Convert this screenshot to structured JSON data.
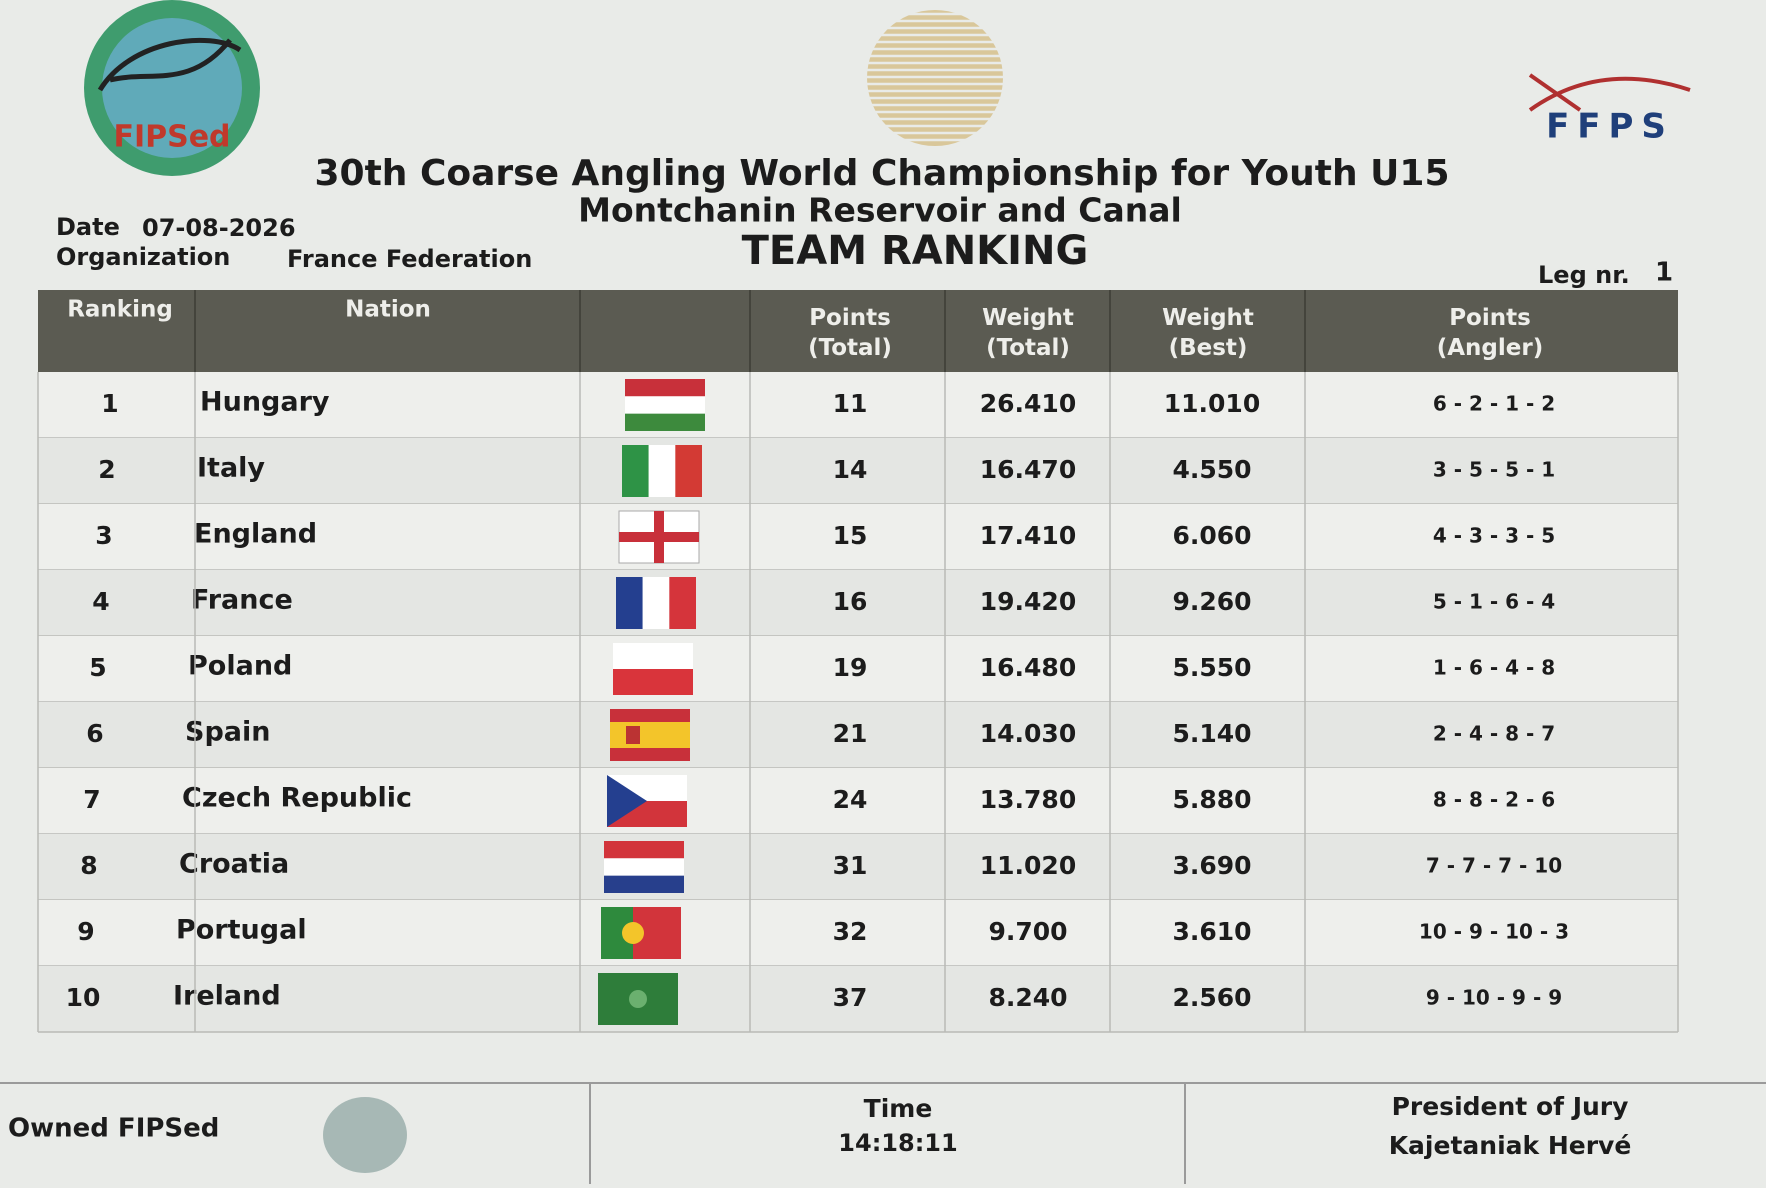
{
  "logos": {
    "left": "FIPSed",
    "right": "FFPS"
  },
  "header": {
    "title": "30th Coarse Angling World Championship for Youth U15",
    "venue": "Montchanin Reservoir and Canal",
    "subtitle": "TEAM RANKING",
    "date_label": "Date",
    "date": "07-08-2026",
    "organization_label": "Organization",
    "organization": "France Federation",
    "leg_label": "Leg nr.",
    "leg": "1"
  },
  "table": {
    "columns": [
      "Ranking",
      "Nation",
      "Points\n(Total)",
      "Weight\n(Total)",
      "Weight\n(Best)",
      "Points\n(Angler)"
    ],
    "rows": [
      [
        "1",
        "Hungary",
        "11",
        "26.410",
        "11.010",
        "6 - 2 - 1 - 2"
      ],
      [
        "2",
        "Italy",
        "14",
        "16.470",
        "4.550",
        "3 - 5 - 5 - 1"
      ],
      [
        "3",
        "England",
        "15",
        "17.410",
        "6.060",
        "4 - 3 - 3 - 5"
      ],
      [
        "4",
        "France",
        "16",
        "19.420",
        "9.260",
        "5 - 1 - 6 - 4"
      ],
      [
        "5",
        "Poland",
        "19",
        "16.480",
        "5.550",
        "1 - 6 - 4 - 8"
      ],
      [
        "6",
        "Spain",
        "21",
        "14.030",
        "5.140",
        "2 - 4 - 8 - 7"
      ],
      [
        "7",
        "Czech Republic",
        "24",
        "13.780",
        "5.880",
        "8 - 8 - 2 - 6"
      ],
      [
        "8",
        "Croatia",
        "31",
        "11.020",
        "3.690",
        "7 - 7 - 7 - 10"
      ],
      [
        "9",
        "Portugal",
        "32",
        "9.700",
        "3.610",
        "10 - 9 - 10 - 3"
      ],
      [
        "10",
        "Ireland",
        "37",
        "8.240",
        "2.560",
        "9 - 10 - 9 - 9"
      ]
    ]
  },
  "footer": {
    "owner": "Owned FIPSed",
    "time_label": "Time",
    "time": "14:18:11",
    "jury_label": "President of Jury",
    "jury": "Kajetaniak Hervé"
  }
}
